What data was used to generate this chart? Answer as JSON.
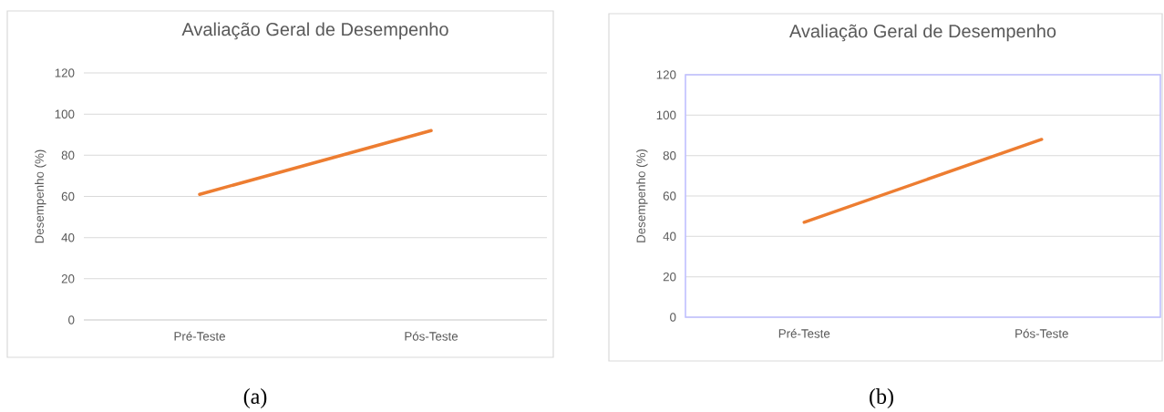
{
  "chart_data": [
    {
      "type": "line",
      "title": "Avaliação Geral de Desempenho",
      "ylabel": "Desempenho (%)",
      "categories": [
        "Pré-Teste",
        "Pós-Teste"
      ],
      "series": [
        {
          "color": "#ed7d31",
          "values": [
            61,
            92
          ]
        }
      ],
      "ylim": [
        0,
        120
      ],
      "yticks": [
        0,
        20,
        40,
        60,
        80,
        100,
        120
      ],
      "grid": "y",
      "annotations": [
        "(a)"
      ]
    },
    {
      "type": "line",
      "title": "Avaliação Geral de Desempenho",
      "ylabel": "Desempenho (%)",
      "categories": [
        "Pré-Teste",
        "Pós-Teste"
      ],
      "series": [
        {
          "color": "#ed7d31",
          "values": [
            47,
            88
          ]
        }
      ],
      "ylim": [
        0,
        120
      ],
      "yticks": [
        0,
        20,
        40,
        60,
        80,
        100,
        120
      ],
      "grid": "y",
      "annotations": [
        "(b)"
      ]
    }
  ]
}
